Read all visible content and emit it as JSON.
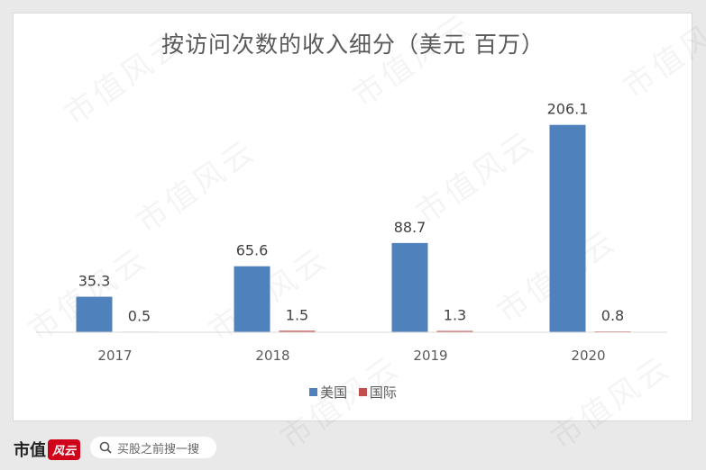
{
  "chart_data": {
    "type": "bar",
    "title": "按访问次数的收入细分（美元 百万）",
    "categories": [
      "2017",
      "2018",
      "2019",
      "2020"
    ],
    "series": [
      {
        "name": "美国",
        "values": [
          35.3,
          65.6,
          88.7,
          206.1
        ],
        "color": "#4f81bd"
      },
      {
        "name": "国际",
        "values": [
          0.5,
          1.5,
          1.3,
          0.8
        ],
        "color": "#c0504d"
      }
    ],
    "ylim": [
      0,
      230
    ],
    "grid": false,
    "legend_position": "bottom"
  },
  "footer": {
    "logo_text": "市值",
    "logo_badge": "风云",
    "search_placeholder": "买股之前搜一搜"
  },
  "watermark": "市值风云"
}
